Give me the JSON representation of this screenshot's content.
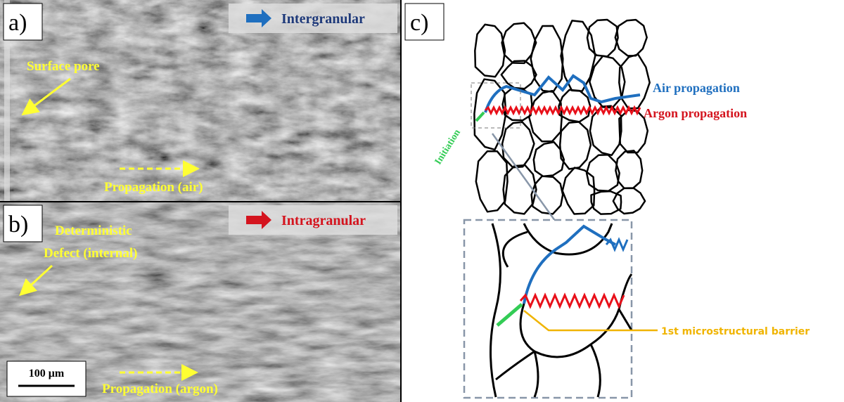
{
  "panel_a": {
    "label": "a)",
    "mode": "Intergranular",
    "pore": "Surface pore",
    "direction": "Propagation (air)"
  },
  "panel_b": {
    "label": "b)",
    "mode": "Intragranular",
    "defect_line1": "Deterministic",
    "defect_line2": "Defect (internal)",
    "direction": "Propagation (argon)",
    "scale_bar": "100 μm"
  },
  "panel_c": {
    "label": "c)",
    "air": "Air propagation",
    "argon": "Argon propagation",
    "initiation": "Initiation",
    "barrier": "1st microstructural barrier"
  }
}
